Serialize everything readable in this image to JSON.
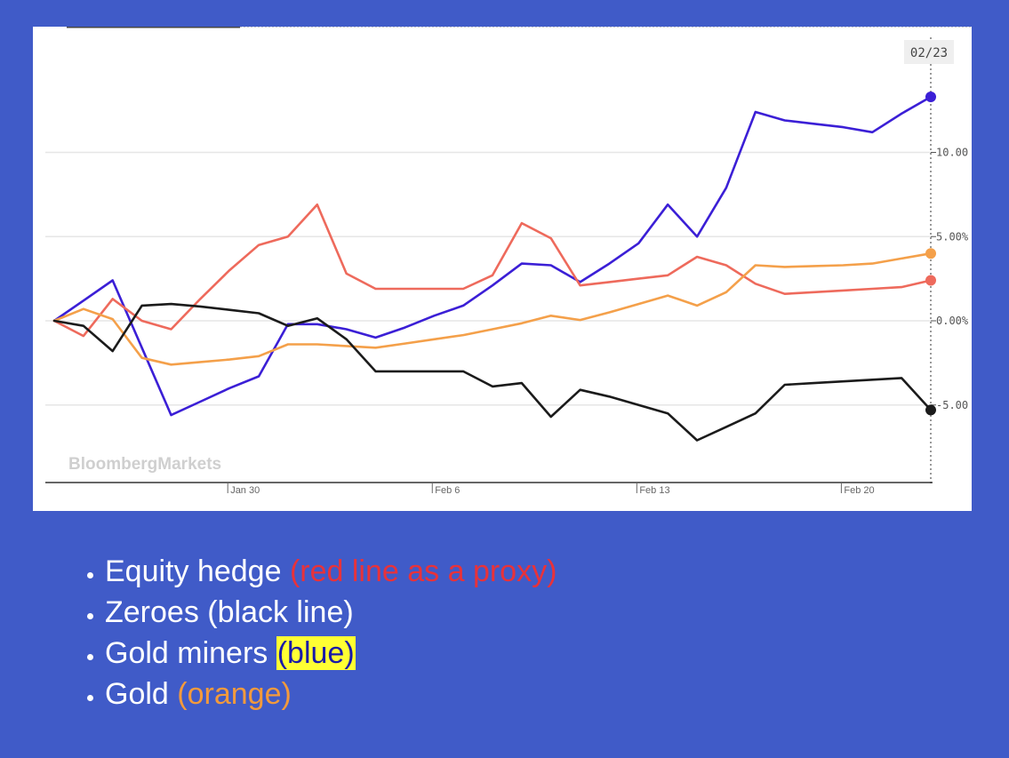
{
  "chart_data": {
    "type": "line",
    "watermark": "BloombergMarkets",
    "hover_date_label": "02/23",
    "x_tick_labels": [
      "Jan 30",
      "Feb 6",
      "Feb 13",
      "Feb 20"
    ],
    "y_tick_labels": [
      "10.00",
      "5.00%",
      "0.00%",
      "-5.00"
    ],
    "y_ticks": [
      10,
      5,
      0,
      -5
    ],
    "ylim": [
      -9.5,
      16.5
    ],
    "grid": true,
    "x": [
      "Jan 24",
      "Jan 25",
      "Jan 26",
      "Jan 27",
      "Jan 28",
      "Jan 29",
      "Jan 30",
      "Jan 31",
      "Feb 1",
      "Feb 2",
      "Feb 3",
      "Feb 4",
      "Feb 5",
      "Feb 6",
      "Feb 7",
      "Feb 8",
      "Feb 9",
      "Feb 10",
      "Feb 11",
      "Feb 12",
      "Feb 13",
      "Feb 14",
      "Feb 15",
      "Feb 16",
      "Feb 17",
      "Feb 18",
      "Feb 19",
      "Feb 20",
      "Feb 21",
      "Feb 22",
      "Feb 23"
    ],
    "series": [
      {
        "color": "#3b1fd6",
        "values": [
          0.0,
          1.2,
          2.4,
          -1.6,
          -5.6,
          -4.8,
          -4.0,
          -3.3,
          -0.2,
          -0.2,
          -0.5,
          -1.0,
          -0.4,
          0.3,
          0.9,
          2.1,
          3.4,
          3.3,
          2.3,
          3.4,
          4.6,
          6.9,
          5.0,
          7.9,
          12.4,
          11.9,
          11.7,
          11.5,
          11.2,
          12.3,
          13.3
        ]
      },
      {
        "color": "#ee6a5c",
        "values": [
          0.0,
          -0.9,
          1.3,
          0.0,
          -0.5,
          1.3,
          3.0,
          4.5,
          5.0,
          6.9,
          2.8,
          1.9,
          1.9,
          1.9,
          1.9,
          2.7,
          5.8,
          4.9,
          2.1,
          2.3,
          2.5,
          2.7,
          3.8,
          3.3,
          2.2,
          1.6,
          1.7,
          1.8,
          1.9,
          2.0,
          2.4
        ]
      },
      {
        "color": "#f4a04a",
        "values": [
          0.0,
          0.7,
          0.1,
          -2.2,
          -2.6,
          -2.45,
          -2.3,
          -2.1,
          -1.4,
          -1.4,
          -1.5,
          -1.6,
          -1.35,
          -1.1,
          -0.85,
          -0.5,
          -0.15,
          0.3,
          0.05,
          0.5,
          1.0,
          1.5,
          0.9,
          1.7,
          3.3,
          3.2,
          3.25,
          3.3,
          3.4,
          3.7,
          4.0
        ]
      },
      {
        "color": "#1b1b1b",
        "values": [
          0.0,
          -0.3,
          -1.8,
          0.9,
          1.0,
          0.85,
          0.65,
          0.45,
          -0.3,
          0.15,
          -1.1,
          -3.0,
          -3.0,
          -3.0,
          -3.0,
          -3.9,
          -3.7,
          -5.7,
          -4.1,
          -4.5,
          -5.0,
          -5.5,
          -7.1,
          -6.3,
          -5.5,
          -3.8,
          -3.7,
          -3.6,
          -3.5,
          -3.4,
          -5.3
        ]
      }
    ]
  },
  "bullets": [
    {
      "label": "Equity hedge",
      "note": "(red line as a proxy)"
    },
    {
      "label": "Zeroes",
      "note": "(black line)"
    },
    {
      "label": "Gold miners",
      "note": "(blue)"
    },
    {
      "label": "Gold",
      "note": "(orange)"
    }
  ]
}
